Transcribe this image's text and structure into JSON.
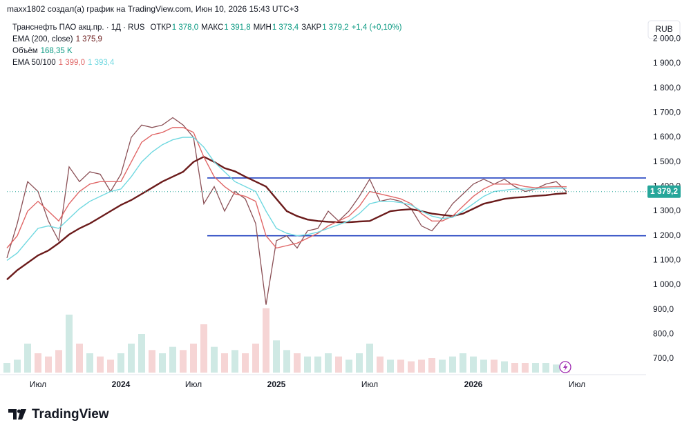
{
  "header": {
    "credit": "maxx1802 создал(а) график на TradingView.com, Июн 10, 2026 15:43 UTC+3"
  },
  "footer": {
    "brand": "TradingView"
  },
  "chart_data": {
    "type": "line",
    "title": "Транснефть ПАО акц.пр. · 1Д · RUS",
    "currency": "RUB",
    "ohlc": [
      {
        "name": "ОТКР",
        "value": 1378.0,
        "label": "1 378,0"
      },
      {
        "name": "МАКС",
        "value": 1391.8,
        "label": "1 391,8"
      },
      {
        "name": "МИН",
        "value": 1373.4,
        "label": "1 373,4"
      },
      {
        "name": "ЗАКР",
        "value": 1379.2,
        "label": "1 379,2"
      }
    ],
    "change": {
      "value": 1.4,
      "label": "+1,4 (+0,10%)"
    },
    "color": "#8a4f55",
    "categories": [
      null,
      null,
      null,
      "Июл",
      null,
      null,
      null,
      null,
      null,
      null,
      null,
      "2024",
      null,
      null,
      null,
      null,
      null,
      null,
      "Июл",
      null,
      null,
      null,
      null,
      null,
      null,
      null,
      "2025",
      null,
      null,
      null,
      null,
      null,
      null,
      null,
      null,
      "Июл",
      null,
      null,
      null,
      null,
      null,
      null,
      null,
      null,
      null,
      "2026",
      null,
      null,
      null,
      null,
      null,
      null,
      null,
      null,
      null,
      "Июл"
    ],
    "values": [
      1110,
      1250,
      1420,
      1380,
      1260,
      1180,
      1480,
      1420,
      1460,
      1450,
      1380,
      1450,
      1600,
      1650,
      1640,
      1650,
      1680,
      1650,
      1600,
      1330,
      1400,
      1300,
      1380,
      1350,
      1250,
      920,
      1180,
      1200,
      1150,
      1220,
      1230,
      1300,
      1260,
      1300,
      1360,
      1430,
      1340,
      1350,
      1340,
      1310,
      1240,
      1220,
      1270,
      1330,
      1370,
      1410,
      1430,
      1410,
      1430,
      1400,
      1380,
      1390,
      1410,
      1420,
      1379.2,
      null
    ],
    "indicators": [
      {
        "name": "EMA (200, close)",
        "lines": [
          {
            "color": "#6b1b1b",
            "last": {
              "value": 1375.9,
              "label": "1 375,9"
            },
            "values": [
              1022,
              1060,
              1090,
              1120,
              1140,
              1170,
              1205,
              1230,
              1250,
              1275,
              1300,
              1325,
              1345,
              1370,
              1395,
              1420,
              1440,
              1460,
              1500,
              1521,
              1500,
              1475,
              1462,
              1440,
              1420,
              1400,
              1350,
              1300,
              1280,
              1266,
              1260,
              1257,
              1255,
              1255,
              1258,
              1260,
              1280,
              1300,
              1305,
              1308,
              1300,
              1290,
              1285,
              1280,
              1290,
              1310,
              1330,
              1340,
              1350,
              1355,
              1358,
              1362,
              1365,
              1370,
              1373,
              null
            ]
          }
        ]
      },
      {
        "name": "EMA 50/100",
        "lines": [
          {
            "color": "#e06666",
            "last": {
              "value": 1399.0,
              "label": "1 399,0"
            },
            "values": [
              1150,
              1200,
              1300,
              1340,
              1300,
              1260,
              1330,
              1380,
              1410,
              1420,
              1420,
              1420,
              1500,
              1580,
              1610,
              1620,
              1640,
              1640,
              1620,
              1520,
              1440,
              1400,
              1370,
              1360,
              1340,
              1200,
              1150,
              1160,
              1170,
              1190,
              1210,
              1240,
              1260,
              1280,
              1320,
              1380,
              1370,
              1360,
              1350,
              1330,
              1290,
              1260,
              1260,
              1280,
              1320,
              1360,
              1390,
              1410,
              1410,
              1410,
              1400,
              1395,
              1398,
              1400,
              1399,
              null
            ]
          },
          {
            "color": "#6fd8e0",
            "last": {
              "value": 1393.4,
              "label": "1 393,4"
            },
            "values": [
              1100,
              1130,
              1180,
              1230,
              1240,
              1230,
              1270,
              1310,
              1340,
              1360,
              1380,
              1390,
              1440,
              1500,
              1540,
              1570,
              1590,
              1600,
              1600,
              1560,
              1500,
              1460,
              1420,
              1400,
              1380,
              1300,
              1230,
              1210,
              1200,
              1205,
              1215,
              1230,
              1245,
              1260,
              1290,
              1330,
              1340,
              1340,
              1335,
              1325,
              1300,
              1280,
              1270,
              1275,
              1300,
              1330,
              1360,
              1380,
              1385,
              1390,
              1390,
              1390,
              1392,
              1394,
              1393,
              null
            ]
          }
        ]
      }
    ],
    "volume": {
      "name": "Объём",
      "last": {
        "value": 168.35,
        "label": "168,35 K"
      },
      "ylim": [
        0,
        3000
      ],
      "values": [
        300,
        400,
        900,
        600,
        500,
        700,
        1800,
        900,
        600,
        500,
        400,
        600,
        900,
        1200,
        700,
        600,
        800,
        700,
        900,
        1500,
        800,
        600,
        700,
        600,
        900,
        2000,
        1000,
        700,
        600,
        500,
        500,
        600,
        500,
        400,
        600,
        900,
        500,
        400,
        400,
        350,
        400,
        450,
        400,
        500,
        600,
        500,
        400,
        400,
        350,
        300,
        300,
        300,
        300,
        250,
        168.35,
        null
      ]
    },
    "levels": [
      1435,
      1200
    ],
    "level_color": "#1e3fbf",
    "ylim": [
      644,
      2074
    ],
    "yticks": [
      {
        "value": 700,
        "label": "700,0"
      },
      {
        "value": 800,
        "label": "800,0"
      },
      {
        "value": 900,
        "label": "900,0"
      },
      {
        "value": 1000,
        "label": "1 000,0"
      },
      {
        "value": 1100,
        "label": "1 100,0"
      },
      {
        "value": 1200,
        "label": "1 200,0"
      },
      {
        "value": 1300,
        "label": "1 300,0"
      },
      {
        "value": 1400,
        "label": "1 400,0"
      },
      {
        "value": 1500,
        "label": "1 500,0"
      },
      {
        "value": 1600,
        "label": "1 600,0"
      },
      {
        "value": 1700,
        "label": "1 700,0"
      },
      {
        "value": 1800,
        "label": "1 800,0"
      },
      {
        "value": 1900,
        "label": "1 900,0"
      },
      {
        "value": 2000,
        "label": "2 000,0"
      }
    ],
    "grid": false
  }
}
